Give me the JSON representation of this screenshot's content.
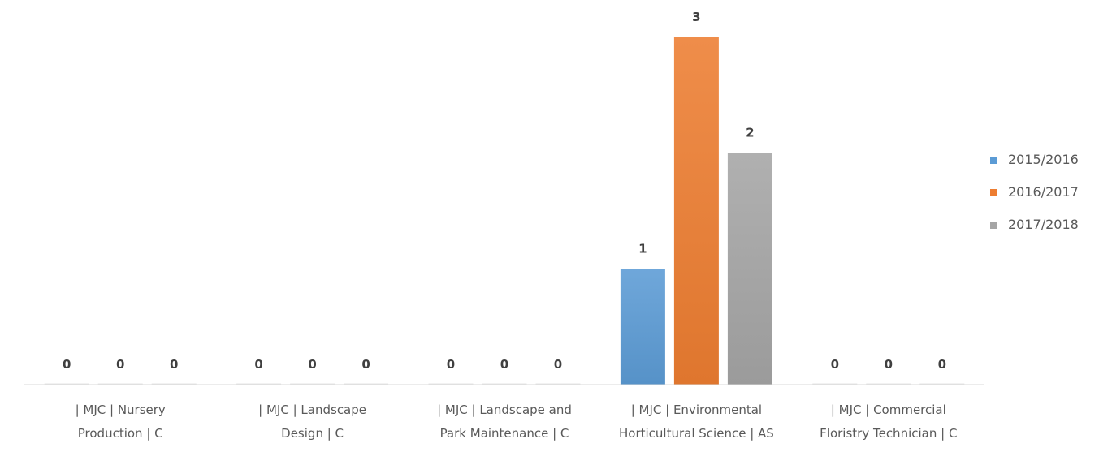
{
  "chart_data": {
    "type": "bar",
    "categories": [
      "| MJC | Nursery Production | C",
      "| MJC | Landscape Design | C",
      "| MJC | Landscape and Park Maintenance | C",
      "| MJC | Environmental Horticultural Science | AS",
      "| MJC | Commercial Floristry Technician | C"
    ],
    "category_lines": [
      [
        "| MJC | Nursery",
        "Production | C"
      ],
      [
        "| MJC | Landscape",
        "Design | C"
      ],
      [
        "| MJC | Landscape and",
        "Park Maintenance | C"
      ],
      [
        "| MJC | Environmental",
        "Horticultural Science | AS"
      ],
      [
        "| MJC | Commercial",
        "Floristry Technician | C"
      ]
    ],
    "series": [
      {
        "name": "2015/2016",
        "values": [
          0,
          0,
          0,
          1,
          0
        ],
        "color": "#5B9BD5"
      },
      {
        "name": "2016/2017",
        "values": [
          0,
          0,
          0,
          3,
          0
        ],
        "color": "#ED7D31"
      },
      {
        "name": "2017/2018",
        "values": [
          0,
          0,
          0,
          2,
          0
        ],
        "color": "#A5A5A5"
      }
    ],
    "ylim": [
      0,
      3
    ],
    "grid": false,
    "data_labels": true,
    "legend": "right",
    "title": "",
    "xlabel": "",
    "ylabel": ""
  }
}
